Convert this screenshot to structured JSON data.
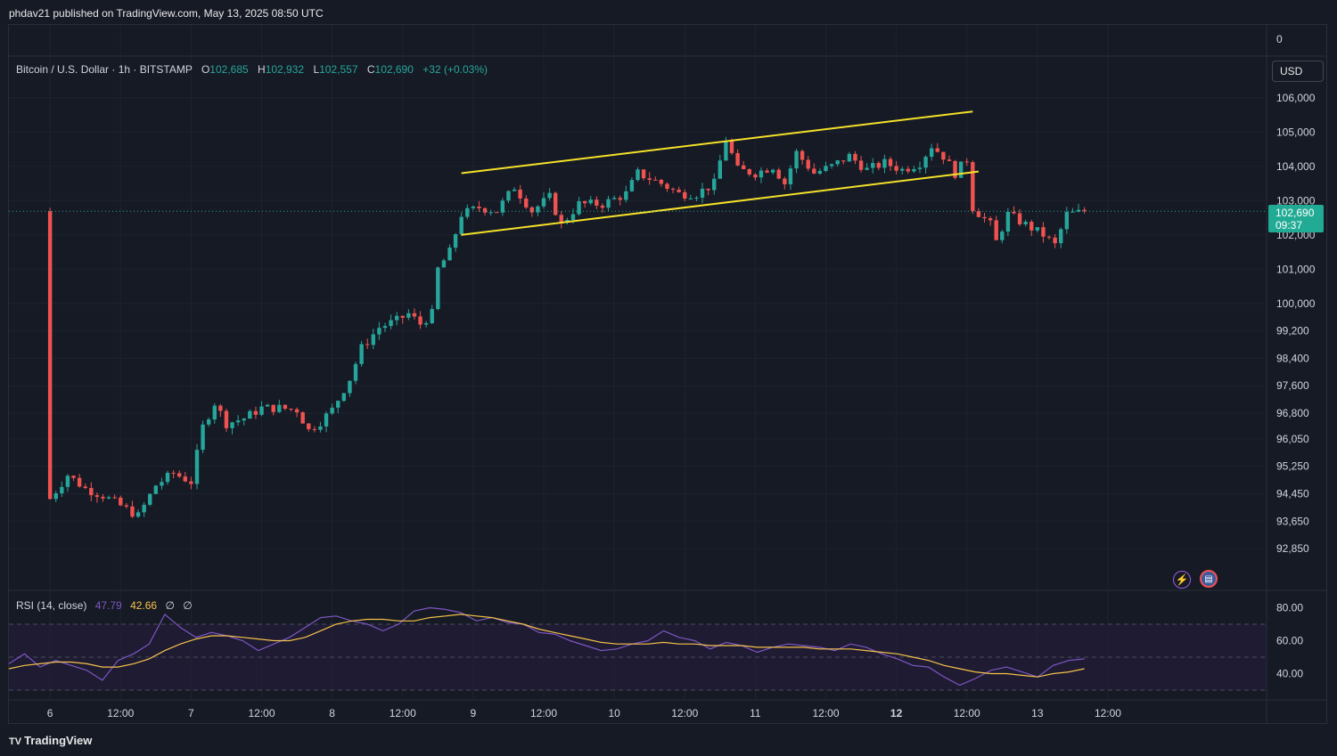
{
  "publisher": "phdav21 published on TradingView.com, May 13, 2025 08:50 UTC",
  "footer_logo": "TradingView",
  "footer_logo_mark": "TV",
  "currency_button": "USD",
  "legend": {
    "symbol": "Bitcoin / U.S. Dollar · 1h · BITSTAMP",
    "open_label": "O",
    "open": "102,685",
    "high_label": "H",
    "high": "102,932",
    "low_label": "L",
    "low": "102,557",
    "close_label": "C",
    "close": "102,690",
    "change": "+32 (+0.03%)"
  },
  "rsi_legend": {
    "name": "RSI (14, close)",
    "rsi": "47.79",
    "ma": "42.66",
    "x1": "∅",
    "x2": "∅"
  },
  "last_price_tag": {
    "price": "102,690",
    "countdown": "09:37"
  },
  "icons": {
    "flash": "lightning-icon",
    "flag": "us-flag-icon"
  },
  "colors": {
    "up": "#26a69a",
    "down": "#ef5350",
    "channel": "#f5e12a",
    "rsi": "#7e57c2",
    "rsi_ma": "#f5c24a",
    "last_price": "#22ab94"
  },
  "chart_data": {
    "type": "candlestick",
    "title": "Bitcoin / U.S. Dollar · 1h · BITSTAMP",
    "y_axis_ticks": [
      "0",
      "106,000",
      "105,000",
      "104,000",
      "103,000",
      "102,000",
      "101,000",
      "100,000",
      "99,200",
      "98,400",
      "97,600",
      "96,800",
      "96,050",
      "95,250",
      "94,450",
      "93,650",
      "92,850"
    ],
    "x_axis_ticks": [
      "6",
      "12:00",
      "7",
      "12:00",
      "8",
      "12:00",
      "9",
      "12:00",
      "10",
      "12:00",
      "11",
      "12:00",
      "12",
      "12:00",
      "13",
      "12:00"
    ],
    "ohlc_close_path": [
      [
        "May 6 00:00",
        94300
      ],
      [
        "May 6 03:00",
        95000
      ],
      [
        "May 6 06:00",
        94600
      ],
      [
        "May 6 09:00",
        94400
      ],
      [
        "May 6 12:00",
        94100
      ],
      [
        "May 6 15:00",
        93800
      ],
      [
        "May 6 18:00",
        94700
      ],
      [
        "May 6 21:00",
        95050
      ],
      [
        "May 7 00:00",
        94800
      ],
      [
        "May 7 02:00",
        96400
      ],
      [
        "May 7 04:00",
        97100
      ],
      [
        "May 7 06:00",
        96500
      ],
      [
        "May 7 09:00",
        96650
      ],
      [
        "May 7 12:00",
        96950
      ],
      [
        "May 7 15:00",
        96950
      ],
      [
        "May 7 18:00",
        96900
      ],
      [
        "May 7 20:00",
        96300
      ],
      [
        "May 7 22:00",
        96550
      ],
      [
        "May 8 00:00",
        96900
      ],
      [
        "May 8 03:00",
        97800
      ],
      [
        "May 8 05:00",
        98700
      ],
      [
        "May 8 08:00",
        99300
      ],
      [
        "May 8 11:00",
        99500
      ],
      [
        "May 8 13:00",
        99700
      ],
      [
        "May 8 15:00",
        99400
      ],
      [
        "May 8 17:00",
        99700
      ],
      [
        "May 8 18:00",
        101000
      ],
      [
        "May 8 20:00",
        101500
      ],
      [
        "May 8 22:00",
        102600
      ],
      [
        "May 9 01:00",
        102800
      ],
      [
        "May 9 04:00",
        102700
      ],
      [
        "May 9 07:00",
        103400
      ],
      [
        "May 9 10:00",
        102700
      ],
      [
        "May 9 13:00",
        103100
      ],
      [
        "May 9 15:00",
        102300
      ],
      [
        "May 9 18:00",
        102900
      ],
      [
        "May 9 22:00",
        102900
      ],
      [
        "May 10 02:00",
        103200
      ],
      [
        "May 10 04:00",
        103800
      ],
      [
        "May 10 08:00",
        103500
      ],
      [
        "May 10 11:00",
        103200
      ],
      [
        "May 10 14:00",
        103200
      ],
      [
        "May 10 17:00",
        103500
      ],
      [
        "May 10 19:00",
        104800
      ],
      [
        "May 10 21:00",
        103900
      ],
      [
        "May 11 00:00",
        103800
      ],
      [
        "May 11 03:00",
        104000
      ],
      [
        "May 11 05:00",
        103500
      ],
      [
        "May 11 07:00",
        104400
      ],
      [
        "May 11 10:00",
        103800
      ],
      [
        "May 11 13:00",
        104000
      ],
      [
        "May 11 16:00",
        104300
      ],
      [
        "May 11 19:00",
        103900
      ],
      [
        "May 11 22:00",
        104100
      ],
      [
        "May 12 01:00",
        103900
      ],
      [
        "May 12 04:00",
        104100
      ],
      [
        "May 12 06:00",
        104600
      ],
      [
        "May 12 08:00",
        104300
      ],
      [
        "May 12 10:00",
        103800
      ],
      [
        "May 12 12:00",
        104200
      ],
      [
        "May 12 13:00",
        102800
      ],
      [
        "May 12 16:00",
        102300
      ],
      [
        "May 12 17:00",
        101800
      ],
      [
        "May 12 19:00",
        102600
      ],
      [
        "May 12 22:00",
        102300
      ],
      [
        "May 13 01:00",
        102000
      ],
      [
        "May 13 03:00",
        101700
      ],
      [
        "May 13 05:00",
        102600
      ],
      [
        "May 13 07:00",
        102650
      ],
      [
        "May 13 08:00",
        102690
      ]
    ],
    "channel": {
      "upper": [
        [
          "May 8 22:00",
          103800
        ],
        [
          "May 12 13:00",
          105600
        ]
      ],
      "lower": [
        [
          "May 8 22:00",
          102000
        ],
        [
          "May 12 14:00",
          103850
        ]
      ]
    },
    "last_price": 102690,
    "rsi": {
      "name": "RSI (14, close)",
      "levels": [
        70,
        50,
        30
      ],
      "y_ticks": [
        "80.00",
        "60.00",
        "40.00"
      ],
      "series": [
        {
          "name": "RSI",
          "values": [
            46,
            52,
            44,
            48,
            45,
            42,
            36,
            48,
            52,
            58,
            76,
            68,
            62,
            65,
            63,
            60,
            54,
            58,
            62,
            68,
            74,
            75,
            72,
            70,
            66,
            70,
            78,
            80,
            79,
            77,
            72,
            74,
            71,
            70,
            65,
            64,
            60,
            57,
            54,
            55,
            58,
            60,
            66,
            62,
            60,
            55,
            59,
            57,
            53,
            56,
            58,
            57,
            56,
            54,
            58,
            56,
            52,
            49,
            45,
            44,
            38,
            33,
            37,
            42,
            44,
            41,
            38,
            45,
            48,
            49
          ]
        },
        {
          "name": "RSI-based MA",
          "values": [
            43,
            45,
            46,
            47,
            47,
            46,
            44,
            44,
            46,
            49,
            54,
            58,
            61,
            63,
            63,
            62,
            61,
            60,
            60,
            62,
            66,
            70,
            72,
            73,
            73,
            72,
            72,
            74,
            75,
            76,
            75,
            74,
            72,
            70,
            67,
            65,
            63,
            61,
            59,
            58,
            58,
            58,
            59,
            58,
            58,
            57,
            57,
            57,
            56,
            56,
            56,
            56,
            55,
            55,
            55,
            54,
            53,
            52,
            50,
            48,
            45,
            43,
            41,
            40,
            40,
            39,
            38,
            40,
            41,
            43
          ]
        }
      ]
    },
    "grid": true
  }
}
